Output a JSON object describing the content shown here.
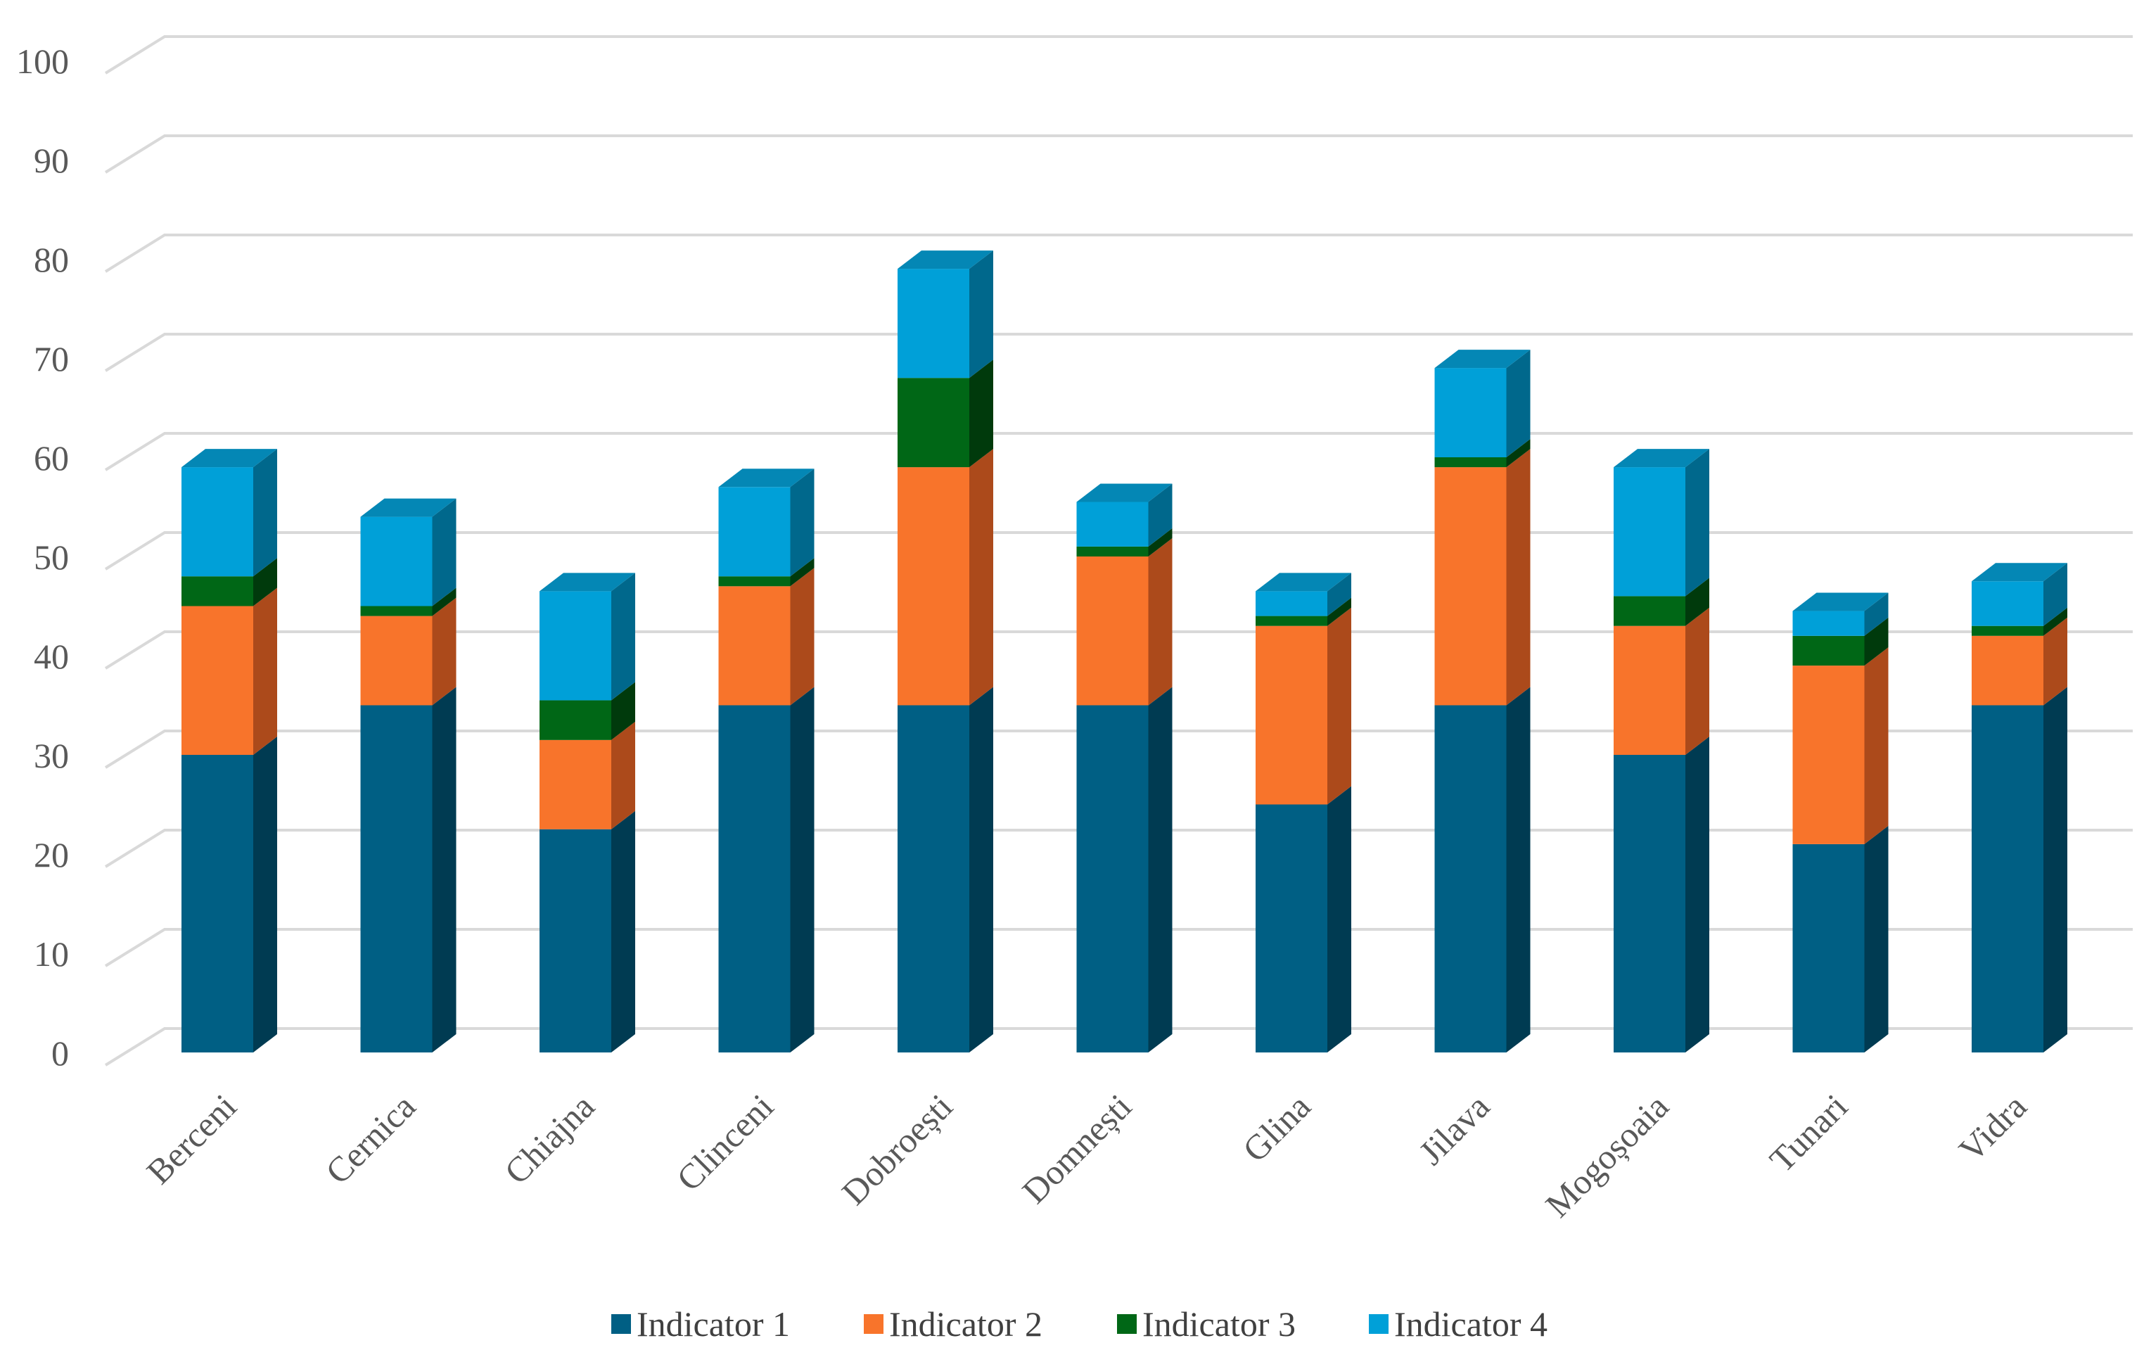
{
  "chart_data": {
    "type": "bar",
    "stacked": true,
    "style": "3d",
    "title": "",
    "xlabel": "",
    "ylabel": "",
    "ylim": [
      0,
      100
    ],
    "yticks": [
      "0",
      "10",
      "20",
      "30",
      "40",
      "50",
      "60",
      "70",
      "80",
      "90",
      "100"
    ],
    "grid": true,
    "legend_position": "bottom",
    "categories": [
      "Berceni",
      "Cernica",
      "Chiajna",
      "Clinceni",
      "Dobroești",
      "Domnești",
      "Glina",
      "Jilava",
      "Mogoșoaia",
      "Tunari",
      "Vidra"
    ],
    "series": [
      {
        "name": "Indicator 1",
        "values": [
          30,
          35,
          22.5,
          35,
          35,
          35,
          25,
          35,
          30,
          21,
          35
        ]
      },
      {
        "name": "Indicator 2",
        "values": [
          15,
          9,
          9,
          12,
          24,
          15,
          18,
          24,
          13,
          18,
          7
        ]
      },
      {
        "name": "Indicator 3",
        "values": [
          3,
          1,
          4,
          1,
          9,
          1,
          1,
          1,
          3,
          3,
          1
        ]
      },
      {
        "name": "Indicator 4",
        "values": [
          11,
          9,
          11,
          9,
          11,
          4.5,
          2.5,
          9,
          13,
          2.5,
          4.5
        ]
      }
    ],
    "colors": {
      "front": [
        "#005f84",
        "#f8742b",
        "#006716",
        "#00a0d8"
      ],
      "side": [
        "#003b52",
        "#ac4a1b",
        "#003a0c",
        "#00688c"
      ],
      "top": [
        "#00779f",
        "#fb9050",
        "#058323",
        "#0487b5"
      ],
      "grid": "#d9d9d9"
    }
  }
}
